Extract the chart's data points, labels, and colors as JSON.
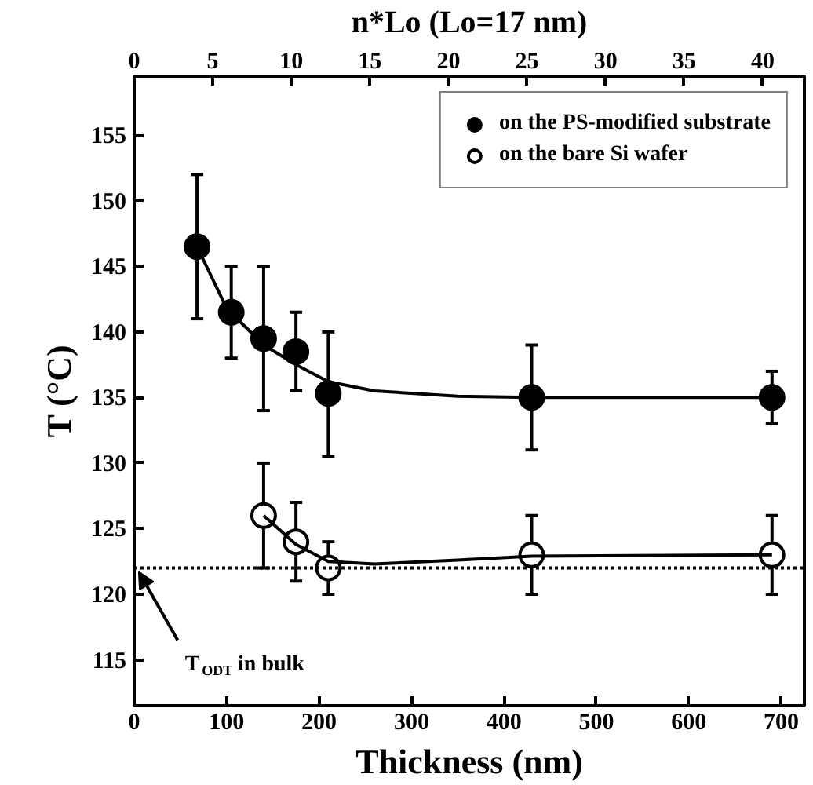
{
  "chart_data": {
    "type": "scatter",
    "xlabel": "Thickness (nm)",
    "ylabel": "T (°C)",
    "x2label": "n*Lo (Lo=17 nm)",
    "xlim": [
      0,
      725
    ],
    "xticks": [
      0,
      100,
      200,
      300,
      400,
      500,
      600,
      700
    ],
    "x2lim": [
      0,
      42.65
    ],
    "x2ticks": [
      0,
      5,
      10,
      15,
      20,
      25,
      30,
      35,
      40
    ],
    "ylim": [
      111.5,
      159.5
    ],
    "yticks": [
      115,
      120,
      125,
      130,
      135,
      140,
      145,
      150,
      155
    ],
    "grid": false,
    "legend": "top right",
    "marker": "circle",
    "series": [
      {
        "name": "on the PS-modified substrate",
        "color": "#000000",
        "x": [
          68,
          105,
          140,
          175,
          210,
          430,
          690
        ],
        "values": [
          146.5,
          141.5,
          139.5,
          138.5,
          135.3,
          135,
          135
        ],
        "errors": [
          [
            141,
            152
          ],
          [
            138,
            145
          ],
          [
            134,
            145
          ],
          [
            135.5,
            141.5
          ],
          [
            130.5,
            140
          ],
          [
            131,
            139
          ],
          [
            133,
            137
          ]
        ]
      },
      {
        "name": "on the bare Si wafer",
        "color": "#ffffff",
        "x": [
          140,
          175,
          210,
          430,
          690
        ],
        "values": [
          126,
          124,
          122,
          123,
          123
        ],
        "errors": [
          [
            122,
            130
          ],
          [
            121,
            127
          ],
          [
            120,
            124
          ],
          [
            120,
            126
          ],
          [
            120,
            126
          ]
        ]
      },
      {
        "type": "line",
        "marker": "none",
        "color": "#000000",
        "x": [
          68,
          100,
          140,
          175,
          210,
          260,
          350,
          430,
          690
        ],
        "values": [
          146.5,
          141.8,
          139,
          137.5,
          136.2,
          135.5,
          135.1,
          135,
          135
        ]
      },
      {
        "type": "line",
        "marker": "none",
        "color": "#000000",
        "x": [
          140,
          175,
          210,
          260,
          350,
          430,
          690
        ],
        "values": [
          126,
          123.8,
          122.5,
          122.3,
          122.6,
          122.9,
          123
        ]
      }
    ],
    "ref_lines": [
      {
        "axis": "y",
        "value": 122,
        "line_style": "dotted",
        "color": "#000000"
      }
    ],
    "annotations": [
      {
        "text": "T$_{ODT}$ in bulk",
        "x": 5,
        "y": 121.7
      }
    ]
  }
}
